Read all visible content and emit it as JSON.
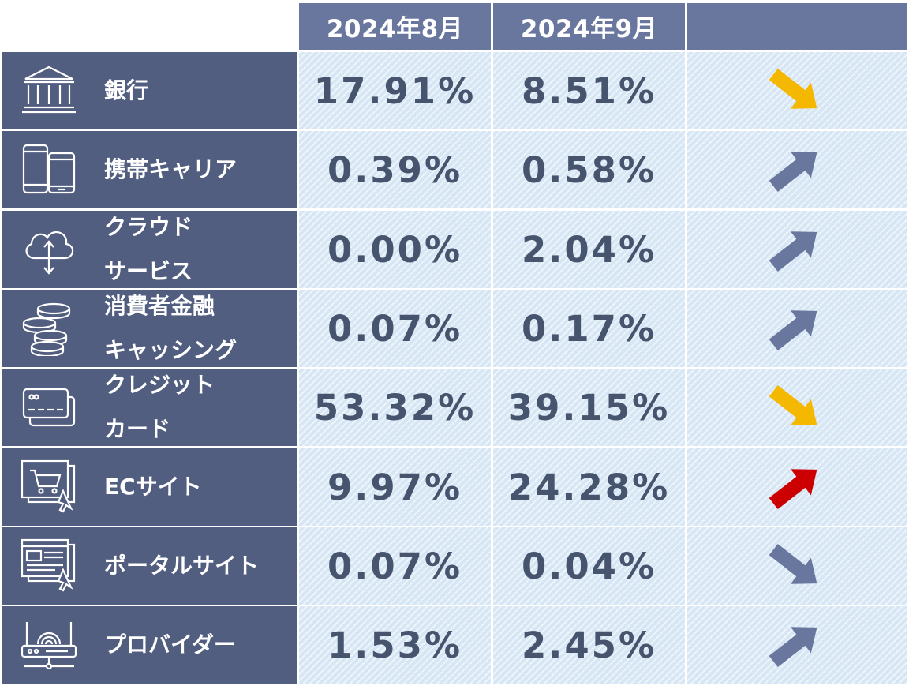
{
  "chart_data": {
    "type": "table",
    "columns": [
      "2024年8月",
      "2024年9月",
      ""
    ],
    "rows": [
      {
        "name": "銀行",
        "label_lines": [
          "銀行"
        ],
        "icon": "bank-icon",
        "aug": "17.91%",
        "sep": "8.51%",
        "trend": "down",
        "arrow_color": "#f5b800"
      },
      {
        "name": "携帯キャリア",
        "label_lines": [
          "携帯キャリア"
        ],
        "icon": "smartphone-icon",
        "aug": "0.39%",
        "sep": "0.58%",
        "trend": "up",
        "arrow_color": "#69769e"
      },
      {
        "name": "クラウドサービス",
        "label_lines": [
          "クラウド",
          "サービス"
        ],
        "icon": "cloud-icon",
        "aug": "0.00%",
        "sep": "2.04%",
        "trend": "up",
        "arrow_color": "#69769e"
      },
      {
        "name": "消費者金融キャッシング",
        "label_lines": [
          "消費者金融",
          "キャッシング"
        ],
        "icon": "coins-icon",
        "aug": "0.07%",
        "sep": "0.17%",
        "trend": "up",
        "arrow_color": "#69769e"
      },
      {
        "name": "クレジットカード",
        "label_lines": [
          "クレジット",
          "カード"
        ],
        "icon": "credit-card-icon",
        "aug": "53.32%",
        "sep": "39.15%",
        "trend": "down",
        "arrow_color": "#f5b800"
      },
      {
        "name": "ECサイト",
        "label_lines": [
          "ECサイト"
        ],
        "icon": "shopping-cart-icon",
        "aug": "9.97%",
        "sep": "24.28%",
        "trend": "up",
        "arrow_color": "#cc0000"
      },
      {
        "name": "ポータルサイト",
        "label_lines": [
          "ポータルサイト"
        ],
        "icon": "web-page-icon",
        "aug": "0.07%",
        "sep": "0.04%",
        "trend": "down",
        "arrow_color": "#69769e"
      },
      {
        "name": "プロバイダー",
        "label_lines": [
          "プロバイダー"
        ],
        "icon": "router-icon",
        "aug": "1.53%",
        "sep": "2.45%",
        "trend": "up",
        "arrow_color": "#69769e"
      }
    ]
  },
  "colors": {
    "header_bg": "#69769e",
    "label_bg": "#525e80",
    "data_bg": "#d7e6f4",
    "value_text": "#46546e",
    "arrow_yellow": "#f5b800",
    "arrow_red": "#cc0000",
    "arrow_slate": "#69769e"
  }
}
